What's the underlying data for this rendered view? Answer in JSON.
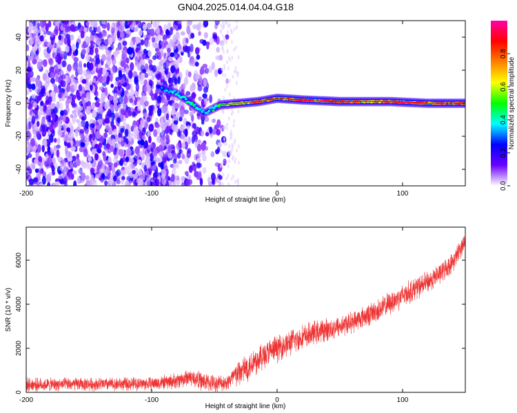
{
  "figure": {
    "title": "GN04.2025.014.04.04.G18"
  },
  "chart_data": [
    {
      "type": "heatmap",
      "xlabel": "Height of straight line (km)",
      "ylabel": "Frequency (Hz)",
      "xlim": [
        -200,
        150
      ],
      "ylim": [
        -50,
        50
      ],
      "x_ticks": [
        -200,
        -100,
        0,
        100
      ],
      "y_ticks": [
        -40,
        -20,
        0,
        20,
        40
      ],
      "colorbar": {
        "label": "Normalized spectral amplitude",
        "range": [
          0,
          1
        ],
        "ticks": [
          "0.0",
          "0.2",
          "0.4",
          "0.6",
          "0.8"
        ],
        "colors": [
          "#ffffff",
          "#6a00ff",
          "#0000ff",
          "#00ffff",
          "#00ff00",
          "#ffff00",
          "#ff8000",
          "#ff0000",
          "#ff00aa"
        ]
      },
      "noise_region_x": [
        -200,
        -45
      ],
      "ridge": [
        {
          "x": -95,
          "y": 10,
          "amp": 0.3
        },
        {
          "x": -88,
          "y": 8,
          "amp": 0.35
        },
        {
          "x": -80,
          "y": 6,
          "amp": 0.45
        },
        {
          "x": -72,
          "y": 2,
          "amp": 0.5
        },
        {
          "x": -65,
          "y": -2,
          "amp": 0.45
        },
        {
          "x": -58,
          "y": -6,
          "amp": 0.35
        },
        {
          "x": -45,
          "y": -1,
          "amp": 0.55
        },
        {
          "x": -30,
          "y": 0,
          "amp": 0.7
        },
        {
          "x": -15,
          "y": 1,
          "amp": 0.8
        },
        {
          "x": 0,
          "y": 3,
          "amp": 0.85
        },
        {
          "x": 20,
          "y": 2,
          "amp": 0.9
        },
        {
          "x": 50,
          "y": 1,
          "amp": 0.85
        },
        {
          "x": 90,
          "y": 1,
          "amp": 0.8
        },
        {
          "x": 120,
          "y": 0,
          "amp": 0.85
        },
        {
          "x": 150,
          "y": 0,
          "amp": 0.9
        }
      ]
    },
    {
      "type": "line",
      "xlabel": "Height of straight line (km)",
      "ylabel": "SNR (10 * v/v)",
      "xlim": [
        -200,
        150
      ],
      "ylim": [
        0,
        7500
      ],
      "x_ticks": [
        -200,
        -100,
        0,
        100
      ],
      "y_ticks": [
        0,
        2000,
        4000,
        6000
      ],
      "color": "#ee3333",
      "series": [
        {
          "x": [
            -200,
            -180,
            -160,
            -140,
            -120,
            -100,
            -90,
            -80,
            -70,
            -60,
            -50,
            -40,
            -30,
            -20,
            -10,
            0,
            10,
            20,
            30,
            40,
            50,
            60,
            70,
            80,
            90,
            100,
            110,
            120,
            130,
            140,
            150
          ],
          "values": [
            350,
            350,
            370,
            370,
            380,
            400,
            450,
            520,
            700,
            500,
            400,
            450,
            900,
            1300,
            1700,
            2000,
            2250,
            2500,
            2700,
            2850,
            3000,
            3200,
            3450,
            3700,
            4050,
            4400,
            4700,
            5000,
            5400,
            5900,
            6900
          ]
        }
      ],
      "noise_amplitude": [
        {
          "x": -200,
          "amp": 500
        },
        {
          "x": -100,
          "amp": 500
        },
        {
          "x": -60,
          "amp": 700
        },
        {
          "x": -40,
          "amp": 600
        },
        {
          "x": -30,
          "amp": 1100
        },
        {
          "x": 0,
          "amp": 1000
        },
        {
          "x": 60,
          "amp": 800
        },
        {
          "x": 100,
          "amp": 900
        },
        {
          "x": 150,
          "amp": 700
        }
      ]
    }
  ]
}
